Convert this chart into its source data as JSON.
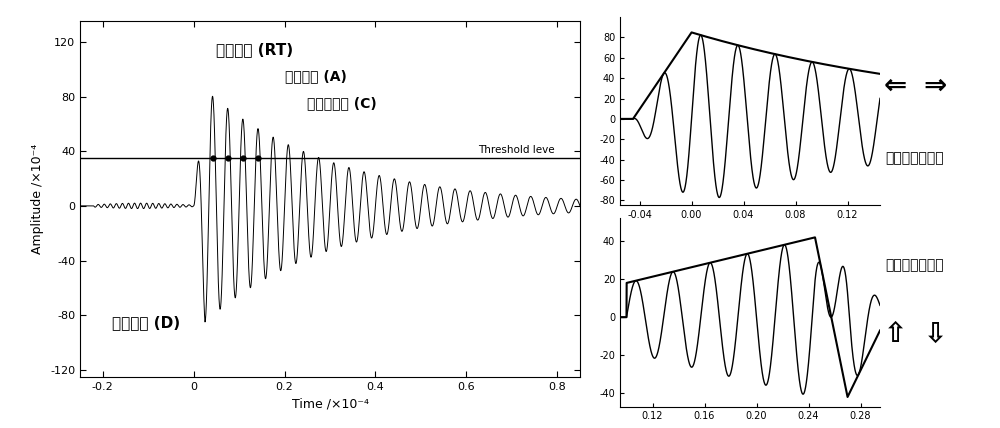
{
  "fig_width": 10.0,
  "fig_height": 4.28,
  "bg_color": "#ffffff",
  "left_panel": {
    "xlim": [
      -0.25,
      0.85
    ],
    "ylim": [
      -125,
      135
    ],
    "xticks": [
      -0.2,
      0.0,
      0.2,
      0.4,
      0.6,
      0.8
    ],
    "xtick_labels": [
      "-0.2",
      "0",
      "0.2",
      "0.4",
      "0.6",
      "0.8"
    ],
    "yticks": [
      -120,
      -80,
      -40,
      0,
      40,
      80,
      120
    ],
    "ytick_labels": [
      "-120",
      "-80",
      "-40",
      "0",
      "40",
      "80",
      "120"
    ],
    "xlabel": "Time /×10⁻⁴",
    "ylabel": "Amplitude /×10⁻⁴",
    "threshold": 35,
    "threshold_label": "Threshold leve",
    "title_risetime": "上升时间 (RT)",
    "label_maxamp": "最大振幅 (A)",
    "label_count": "声发射计数 (C)",
    "label_duration": "持续时间 (D)"
  },
  "top_right_panel": {
    "xlim": [
      -0.055,
      0.145
    ],
    "ylim": [
      -85,
      100
    ],
    "xticks": [
      -0.04,
      0.0,
      0.04,
      0.08,
      0.12
    ],
    "xtick_labels": [
      "-0.04",
      "0.00",
      "0.04",
      "0.08",
      "0.12"
    ],
    "yticks": [
      -80,
      -60,
      -40,
      -20,
      0,
      20,
      40,
      60,
      80
    ],
    "ytick_labels": [
      "-80",
      "-60",
      "-40",
      "-20",
      "0",
      "20",
      "40",
      "60",
      "80"
    ],
    "label": "拉伸声发射事件"
  },
  "bottom_right_panel": {
    "xlim": [
      0.095,
      0.295
    ],
    "ylim": [
      -47,
      52
    ],
    "xticks": [
      0.12,
      0.16,
      0.2,
      0.24,
      0.28
    ],
    "xtick_labels": [
      "0.12",
      "0.16",
      "0.20",
      "0.24",
      "0.28"
    ],
    "yticks": [
      -40,
      -20,
      0,
      20,
      40
    ],
    "ytick_labels": [
      "-40",
      "-20",
      "0",
      "20",
      "40"
    ],
    "label": "剪切声发射事件"
  }
}
